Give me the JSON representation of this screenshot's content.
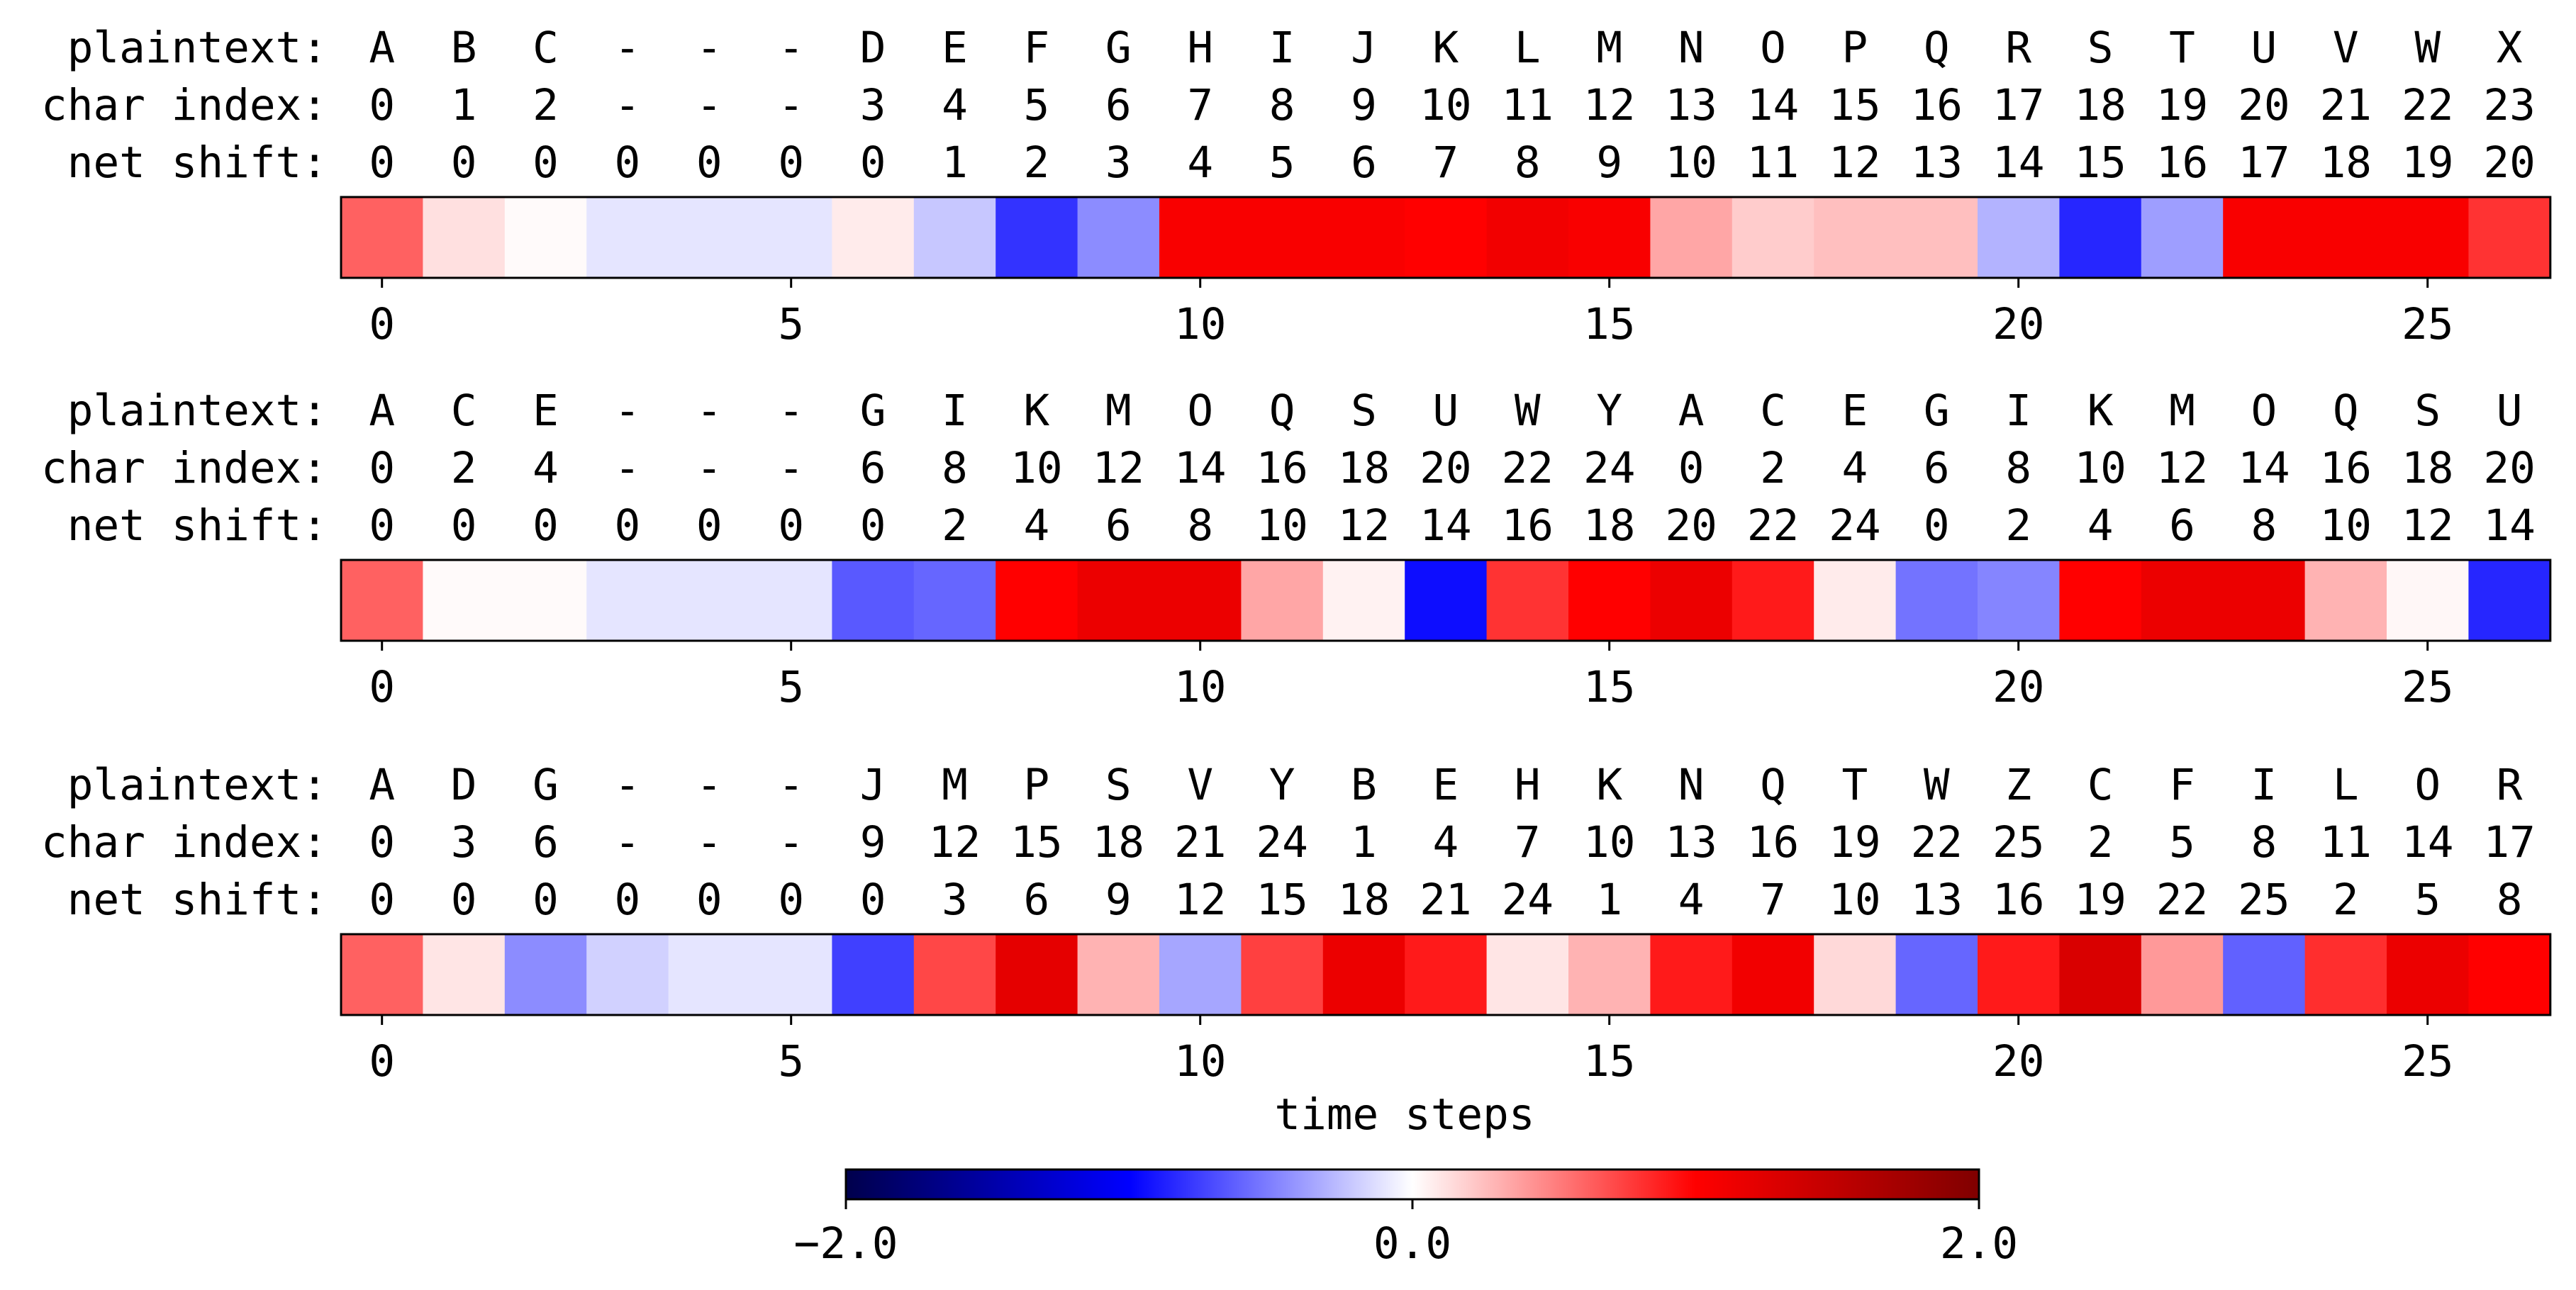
{
  "chart_data": {
    "type": "heatmap",
    "colormap": "seismic",
    "vmin": -2.0,
    "vmax": 2.0,
    "xlabel": "time steps",
    "xticks": [
      0,
      5,
      10,
      15,
      20,
      25
    ],
    "colorbar_ticks": [
      "−2.0",
      "0.0",
      "2.0"
    ],
    "colorbar_values": [
      -2.0,
      0.0,
      2.0
    ],
    "row_labels": [
      "plaintext:",
      "char index:",
      "net shift:"
    ],
    "panels": [
      {
        "plaintext": [
          "A",
          "B",
          "C",
          "-",
          "-",
          "-",
          "D",
          "E",
          "F",
          "G",
          "H",
          "I",
          "J",
          "K",
          "L",
          "M",
          "N",
          "O",
          "P",
          "Q",
          "R",
          "S",
          "T",
          "U",
          "V",
          "W",
          "X"
        ],
        "char_index": [
          "0",
          "1",
          "2",
          "-",
          "-",
          "-",
          "3",
          "4",
          "5",
          "6",
          "7",
          "8",
          "9",
          "10",
          "11",
          "12",
          "13",
          "14",
          "15",
          "16",
          "17",
          "18",
          "19",
          "20",
          "21",
          "22",
          "23"
        ],
        "net_shift": [
          "0",
          "0",
          "0",
          "0",
          "0",
          "0",
          "0",
          "1",
          "2",
          "3",
          "4",
          "5",
          "6",
          "7",
          "8",
          "9",
          "10",
          "11",
          "12",
          "13",
          "14",
          "15",
          "16",
          "17",
          "18",
          "19",
          "20"
        ],
        "values": [
          0.62,
          0.12,
          0.02,
          -0.1,
          -0.1,
          -0.1,
          0.08,
          -0.22,
          -0.8,
          -0.45,
          1.05,
          1.05,
          1.05,
          1.0,
          1.1,
          1.05,
          0.35,
          0.2,
          0.25,
          0.25,
          -0.3,
          -0.85,
          -0.38,
          1.05,
          1.05,
          1.05,
          0.8
        ]
      },
      {
        "plaintext": [
          "A",
          "C",
          "E",
          "-",
          "-",
          "-",
          "G",
          "I",
          "K",
          "M",
          "O",
          "Q",
          "S",
          "U",
          "W",
          "Y",
          "A",
          "C",
          "E",
          "G",
          "I",
          "K",
          "M",
          "O",
          "Q",
          "S",
          "U"
        ],
        "char_index": [
          "0",
          "2",
          "4",
          "-",
          "-",
          "-",
          "6",
          "8",
          "10",
          "12",
          "14",
          "16",
          "18",
          "20",
          "22",
          "24",
          "0",
          "2",
          "4",
          "6",
          "8",
          "10",
          "12",
          "14",
          "16",
          "18",
          "20"
        ],
        "net_shift": [
          "0",
          "0",
          "0",
          "0",
          "0",
          "0",
          "0",
          "2",
          "4",
          "6",
          "8",
          "10",
          "12",
          "14",
          "16",
          "18",
          "20",
          "22",
          "24",
          "0",
          "2",
          "4",
          "6",
          "8",
          "10",
          "12",
          "14"
        ],
        "values": [
          0.62,
          0.02,
          0.02,
          -0.1,
          -0.1,
          -0.1,
          -0.65,
          -0.6,
          1.0,
          1.15,
          1.15,
          0.35,
          0.05,
          -0.95,
          0.8,
          1.0,
          1.15,
          0.9,
          0.08,
          -0.55,
          -0.48,
          1.0,
          1.15,
          1.15,
          0.3,
          0.03,
          -0.85
        ]
      },
      {
        "plaintext": [
          "A",
          "D",
          "G",
          "-",
          "-",
          "-",
          "J",
          "M",
          "P",
          "S",
          "V",
          "Y",
          "B",
          "E",
          "H",
          "K",
          "N",
          "Q",
          "T",
          "W",
          "Z",
          "C",
          "F",
          "I",
          "L",
          "O",
          "R"
        ],
        "char_index": [
          "0",
          "3",
          "6",
          "-",
          "-",
          "-",
          "9",
          "12",
          "15",
          "18",
          "21",
          "24",
          "1",
          "4",
          "7",
          "10",
          "13",
          "16",
          "19",
          "22",
          "25",
          "2",
          "5",
          "8",
          "11",
          "14",
          "17"
        ],
        "net_shift": [
          "0",
          "0",
          "0",
          "0",
          "0",
          "0",
          "0",
          "3",
          "6",
          "9",
          "12",
          "15",
          "18",
          "21",
          "24",
          "1",
          "4",
          "7",
          "10",
          "13",
          "16",
          "19",
          "22",
          "25",
          "2",
          "5",
          "8"
        ],
        "values": [
          0.62,
          0.1,
          -0.45,
          -0.18,
          -0.1,
          -0.1,
          -0.75,
          0.72,
          1.2,
          0.3,
          -0.35,
          0.75,
          1.15,
          0.9,
          0.1,
          0.3,
          0.9,
          1.1,
          0.15,
          -0.6,
          0.9,
          1.3,
          0.4,
          -0.62,
          0.82,
          1.15,
          1.0
        ]
      }
    ]
  }
}
